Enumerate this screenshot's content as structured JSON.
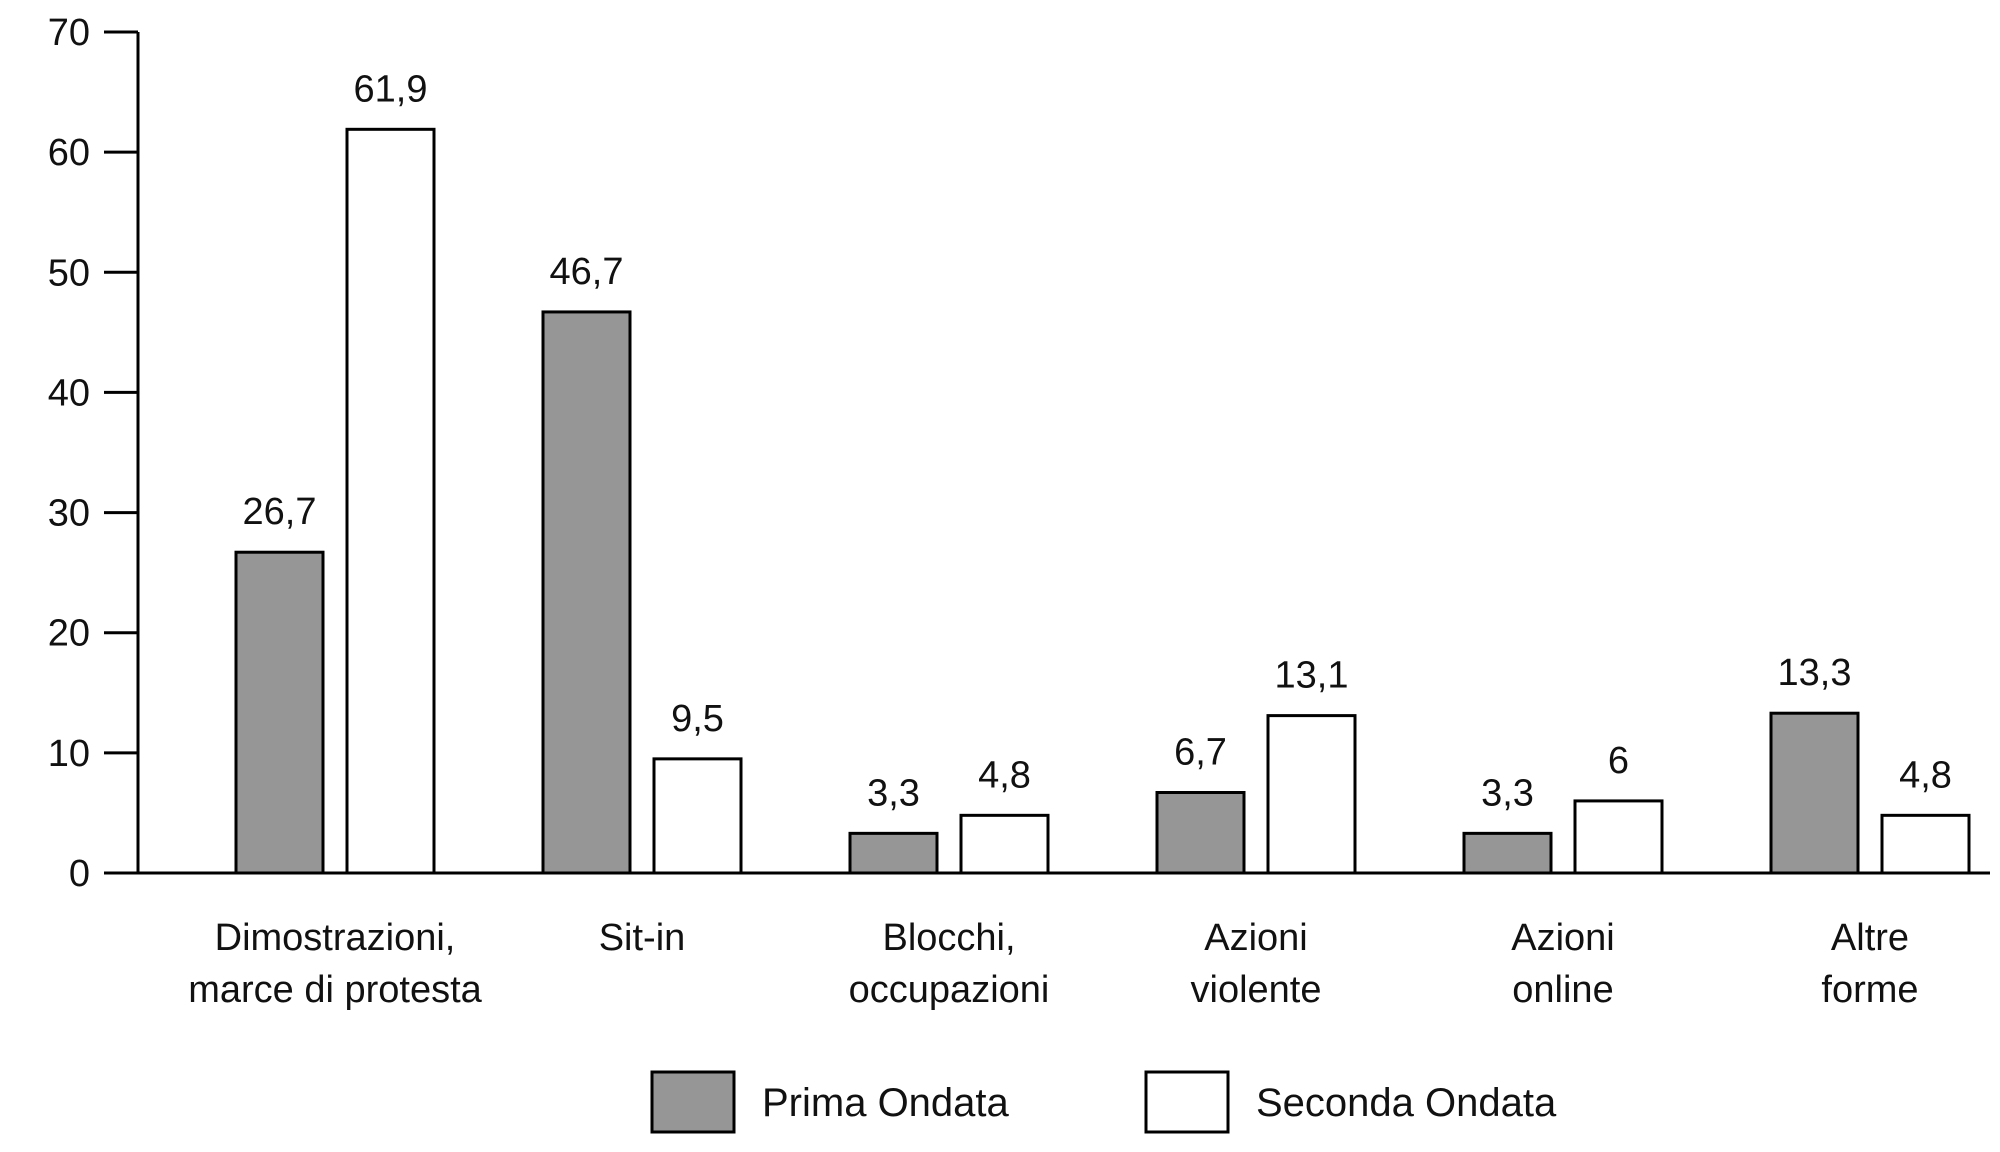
{
  "chart_data": {
    "type": "bar",
    "title": "",
    "xlabel": "",
    "ylabel": "",
    "ylim": [
      0,
      70
    ],
    "yticks": [
      0,
      10,
      20,
      30,
      40,
      50,
      60,
      70
    ],
    "grid": false,
    "legend_position": "bottom-center",
    "categories": [
      [
        "Dimostrazioni,",
        "marce di protesta"
      ],
      [
        "Sit-in"
      ],
      [
        "Blocchi,",
        "occupazioni"
      ],
      [
        "Azioni",
        "violente"
      ],
      [
        "Azioni",
        "online"
      ],
      [
        "Altre",
        "forme"
      ]
    ],
    "series": [
      {
        "name": "Prima Ondata",
        "color": "#969696",
        "values": [
          26.7,
          46.7,
          3.3,
          6.7,
          3.3,
          13.3
        ],
        "labels": [
          "26,7",
          "46,7",
          "3,3",
          "6,7",
          "3,3",
          "13,3"
        ]
      },
      {
        "name": "Seconda Ondata",
        "color": "#ffffff",
        "values": [
          61.9,
          9.5,
          4.8,
          13.1,
          6,
          4.8
        ],
        "labels": [
          "61,9",
          "9,5",
          "4,8",
          "13,1",
          "6",
          "4,8"
        ]
      }
    ]
  }
}
